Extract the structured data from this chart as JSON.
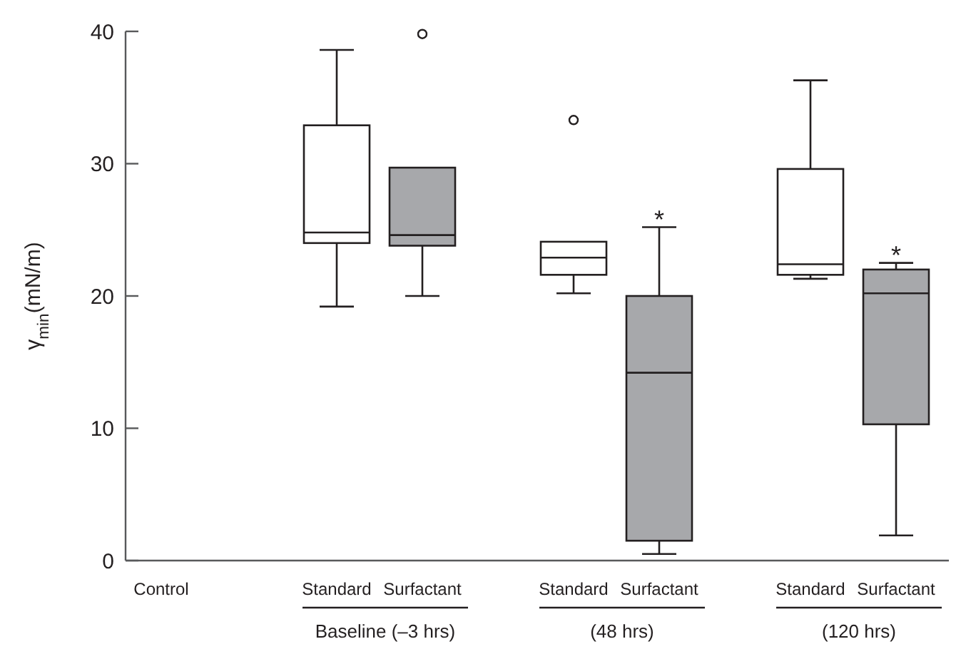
{
  "chart_data": {
    "type": "box",
    "ylabel": "γ$_{min}$(mN/m)",
    "categories": [
      "Control",
      "Standard",
      "Surfactant",
      "Standard",
      "Surfactant",
      "Standard",
      "Surfactant"
    ],
    "colors": [
      null,
      "#ffffff",
      "#a7a8ab",
      "#ffffff",
      "#a7a8ab",
      "#ffffff",
      "#a7a8ab"
    ],
    "boxes": [
      null,
      {
        "low": 19.2,
        "q1": 24.0,
        "median": 24.8,
        "q3": 32.9,
        "high": 38.6
      },
      {
        "low": 20.0,
        "q1": 23.8,
        "median": 24.6,
        "q3": 29.7,
        "high": 29.7,
        "outliers": [
          39.8
        ]
      },
      {
        "low": 20.2,
        "q1": 21.6,
        "median": 22.9,
        "q3": 24.1,
        "high": 24.1,
        "outliers": [
          33.3
        ]
      },
      {
        "low": 0.5,
        "q1": 1.5,
        "median": 14.2,
        "q3": 20.0,
        "high": 25.2
      },
      {
        "low": 21.3,
        "q1": 21.6,
        "median": 22.4,
        "q3": 29.6,
        "high": 36.3
      },
      {
        "low": 1.9,
        "q1": 10.3,
        "median": 20.2,
        "q3": 22.0,
        "high": 22.5
      }
    ],
    "ylim": [
      0,
      40
    ],
    "yticks": [
      0,
      10,
      20,
      30,
      40
    ],
    "annotations": [
      "Baseline (–3 hrs)",
      "(48 hrs)",
      "(120 hrs)",
      "*",
      "*"
    ]
  }
}
